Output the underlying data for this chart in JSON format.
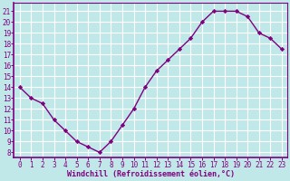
{
  "x": [
    0,
    1,
    2,
    3,
    4,
    5,
    6,
    7,
    8,
    9,
    10,
    11,
    12,
    13,
    14,
    15,
    16,
    17,
    18,
    19,
    20,
    21,
    22,
    23
  ],
  "y": [
    14,
    13,
    12.5,
    11,
    10,
    9,
    8.5,
    8,
    9,
    10.5,
    12,
    14,
    15.5,
    16.5,
    17.5,
    18.5,
    20,
    21,
    21,
    21,
    20.5,
    19,
    18.5,
    17.5
  ],
  "line_color": "#800080",
  "marker": "D",
  "marker_size": 2.2,
  "bg_color": "#c0e8e8",
  "grid_color": "#ffffff",
  "xlabel": "Windchill (Refroidissement éolien,°C)",
  "xlabel_color": "#800080",
  "tick_color": "#800080",
  "spine_color": "#800080",
  "ylim": [
    7.5,
    21.8
  ],
  "xlim": [
    -0.5,
    23.5
  ],
  "yticks": [
    8,
    9,
    10,
    11,
    12,
    13,
    14,
    15,
    16,
    17,
    18,
    19,
    20,
    21
  ],
  "xticks": [
    0,
    1,
    2,
    3,
    4,
    5,
    6,
    7,
    8,
    9,
    10,
    11,
    12,
    13,
    14,
    15,
    16,
    17,
    18,
    19,
    20,
    21,
    22,
    23
  ],
  "tick_fontsize": 5.5,
  "xlabel_fontsize": 6.0,
  "linewidth": 1.0
}
